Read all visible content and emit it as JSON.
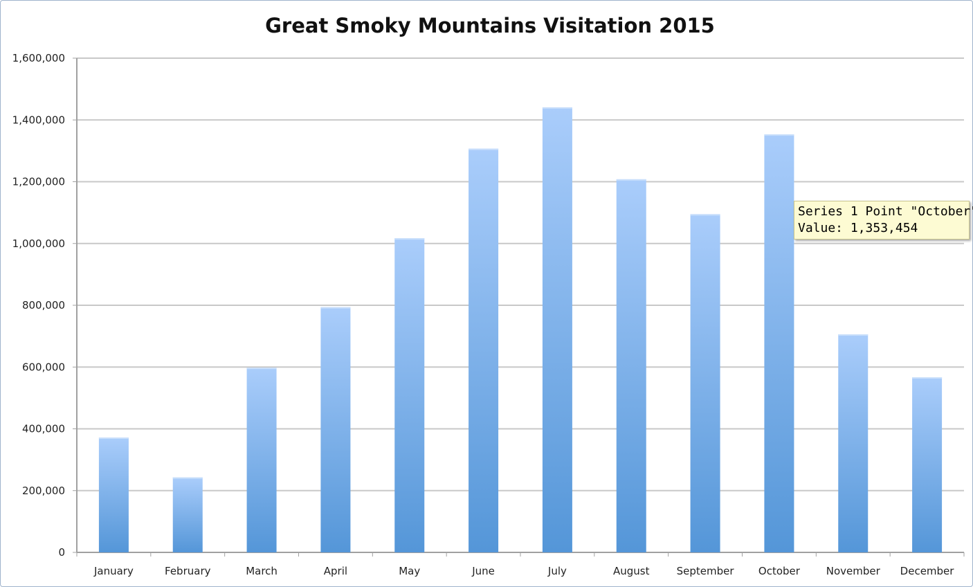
{
  "chart_data": {
    "type": "bar",
    "title": "Great Smoky Mountains Visitation 2015",
    "xlabel": "",
    "ylabel": "",
    "categories": [
      "January",
      "February",
      "March",
      "April",
      "May",
      "June",
      "July",
      "August",
      "September",
      "October",
      "November",
      "December"
    ],
    "series": [
      {
        "values": [
          372000,
          243000,
          598000,
          794000,
          1017000,
          1307000,
          1441000,
          1208000,
          1095000,
          1353454,
          706000,
          567000
        ]
      }
    ],
    "ylim": [
      0,
      1600000
    ],
    "yticks": [
      0,
      200000,
      400000,
      600000,
      800000,
      1000000,
      1200000,
      1400000,
      1600000
    ],
    "ytick_labels": [
      "0",
      "200,000",
      "400,000",
      "600,000",
      "800,000",
      "1,000,000",
      "1,200,000",
      "1,400,000",
      "1,600,000"
    ],
    "grid": true,
    "legend": "none",
    "bar_color_top": "#aacdfb",
    "bar_color_bottom": "#5496d8",
    "grid_color": "#c8c8c8"
  },
  "tooltip": {
    "line1": "Series 1 Point \"October\"",
    "line2": "Value: 1,353,454"
  }
}
